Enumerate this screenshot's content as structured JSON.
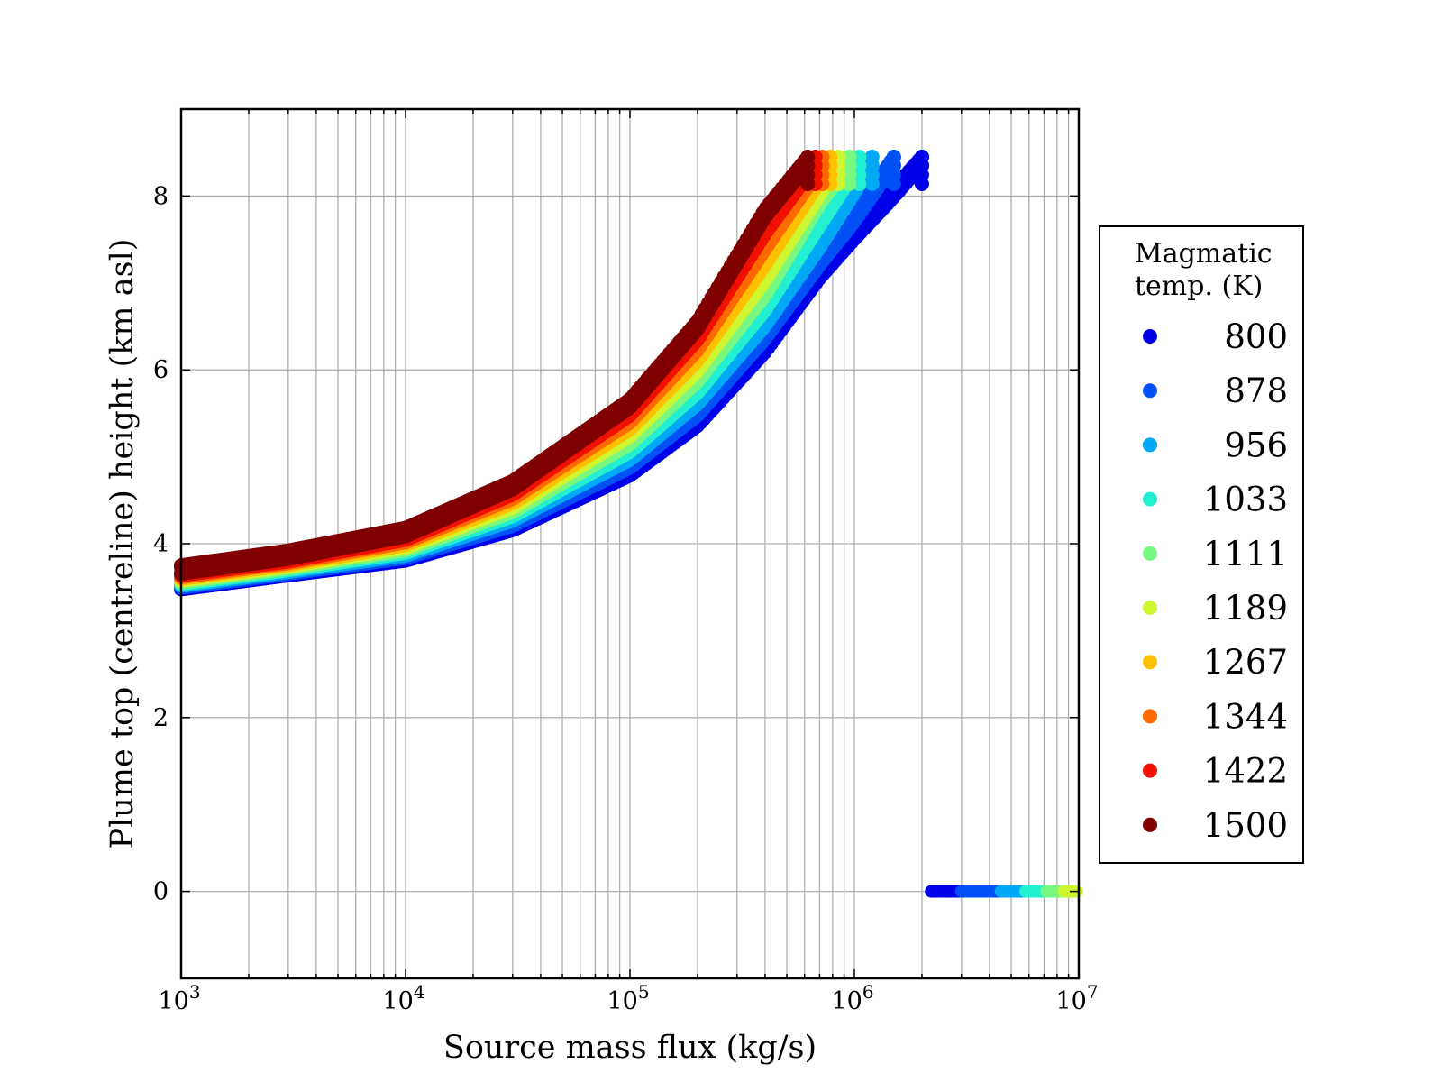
{
  "chart_data": {
    "type": "scatter",
    "xlabel": "Source mass flux (kg/s)",
    "ylabel": "Plume top (centreline) height (km asl)",
    "xscale": "log",
    "xlim": [
      1000,
      10000000
    ],
    "ylim": [
      -1,
      9
    ],
    "grid": true,
    "x_ticks": [
      {
        "value": 1000,
        "base": "10",
        "exp": "3"
      },
      {
        "value": 10000,
        "base": "10",
        "exp": "4"
      },
      {
        "value": 100000,
        "base": "10",
        "exp": "5"
      },
      {
        "value": 1000000,
        "base": "10",
        "exp": "6"
      },
      {
        "value": 10000000,
        "base": "10",
        "exp": "7"
      }
    ],
    "y_ticks": [
      {
        "value": 0,
        "label": "0"
      },
      {
        "value": 2,
        "label": "2"
      },
      {
        "value": 4,
        "label": "4"
      },
      {
        "value": 6,
        "label": "6"
      },
      {
        "value": 8,
        "label": "8"
      }
    ],
    "legend": {
      "title_lines": [
        "Magmatic",
        "temp. (K)"
      ],
      "placement": "outside-right"
    },
    "series": [
      {
        "name": "800",
        "color": "#0000e8",
        "curve": [
          [
            1000,
            3.57
          ],
          [
            3000,
            3.73
          ],
          [
            10000,
            3.9
          ],
          [
            30000,
            4.25
          ],
          [
            100000,
            4.88
          ],
          [
            200000,
            5.45
          ],
          [
            400000,
            6.3
          ],
          [
            700000,
            7.15
          ],
          [
            1000000,
            7.6
          ],
          [
            1400000,
            8.0
          ],
          [
            2000000,
            8.45
          ]
        ],
        "zero_range": [
          2200000,
          3000000
        ]
      },
      {
        "name": "878",
        "color": "#0050f5",
        "curve": [
          [
            1000,
            3.59
          ],
          [
            3000,
            3.75
          ],
          [
            10000,
            3.93
          ],
          [
            30000,
            4.3
          ],
          [
            100000,
            4.97
          ],
          [
            200000,
            5.57
          ],
          [
            400000,
            6.45
          ],
          [
            700000,
            7.3
          ],
          [
            1000000,
            7.8
          ],
          [
            1500000,
            8.45
          ]
        ],
        "zero_range": [
          3000000,
          4500000
        ]
      },
      {
        "name": "956",
        "color": "#00a8f5",
        "curve": [
          [
            1000,
            3.61
          ],
          [
            3000,
            3.77
          ],
          [
            10000,
            3.96
          ],
          [
            30000,
            4.36
          ],
          [
            100000,
            5.06
          ],
          [
            200000,
            5.7
          ],
          [
            400000,
            6.6
          ],
          [
            700000,
            7.5
          ],
          [
            1200000,
            8.45
          ]
        ],
        "zero_range": [
          4500000,
          5800000
        ]
      },
      {
        "name": "1033",
        "color": "#22f0d0",
        "curve": [
          [
            1000,
            3.63
          ],
          [
            3000,
            3.79
          ],
          [
            10000,
            3.99
          ],
          [
            30000,
            4.41
          ],
          [
            100000,
            5.15
          ],
          [
            200000,
            5.83
          ],
          [
            400000,
            6.78
          ],
          [
            700000,
            7.75
          ],
          [
            1050000,
            8.45
          ]
        ],
        "zero_range": [
          5800000,
          7200000
        ]
      },
      {
        "name": "1111",
        "color": "#78f880",
        "curve": [
          [
            1000,
            3.65
          ],
          [
            3000,
            3.81
          ],
          [
            10000,
            4.02
          ],
          [
            30000,
            4.46
          ],
          [
            100000,
            5.24
          ],
          [
            200000,
            5.96
          ],
          [
            400000,
            6.95
          ],
          [
            700000,
            8.0
          ],
          [
            950000,
            8.45
          ]
        ],
        "zero_range": [
          7200000,
          8600000
        ]
      },
      {
        "name": "1189",
        "color": "#cdf530",
        "curve": [
          [
            1000,
            3.67
          ],
          [
            3000,
            3.83
          ],
          [
            10000,
            4.05
          ],
          [
            30000,
            4.51
          ],
          [
            100000,
            5.33
          ],
          [
            200000,
            6.08
          ],
          [
            400000,
            7.12
          ],
          [
            850000,
            8.45
          ]
        ],
        "zero_range": [
          8600000,
          10000000
        ]
      },
      {
        "name": "1267",
        "color": "#ffc000",
        "curve": [
          [
            1000,
            3.69
          ],
          [
            3000,
            3.85
          ],
          [
            10000,
            4.08
          ],
          [
            30000,
            4.56
          ],
          [
            100000,
            5.41
          ],
          [
            200000,
            6.2
          ],
          [
            400000,
            7.3
          ],
          [
            780000,
            8.45
          ]
        ],
        "zero_range": null
      },
      {
        "name": "1344",
        "color": "#ff6a00",
        "curve": [
          [
            1000,
            3.71
          ],
          [
            3000,
            3.87
          ],
          [
            10000,
            4.11
          ],
          [
            30000,
            4.61
          ],
          [
            100000,
            5.49
          ],
          [
            200000,
            6.32
          ],
          [
            400000,
            7.48
          ],
          [
            720000,
            8.45
          ]
        ],
        "zero_range": null
      },
      {
        "name": "1422",
        "color": "#f01000",
        "curve": [
          [
            1000,
            3.73
          ],
          [
            3000,
            3.89
          ],
          [
            10000,
            4.14
          ],
          [
            30000,
            4.66
          ],
          [
            100000,
            5.57
          ],
          [
            200000,
            6.44
          ],
          [
            400000,
            7.66
          ],
          [
            670000,
            8.45
          ]
        ],
        "zero_range": null
      },
      {
        "name": "1500",
        "color": "#800000",
        "curve": [
          [
            1000,
            3.75
          ],
          [
            3000,
            3.92
          ],
          [
            10000,
            4.18
          ],
          [
            30000,
            4.72
          ],
          [
            100000,
            5.66
          ],
          [
            200000,
            6.56
          ],
          [
            400000,
            7.85
          ],
          [
            620000,
            8.45
          ]
        ],
        "zero_range": null
      }
    ]
  }
}
